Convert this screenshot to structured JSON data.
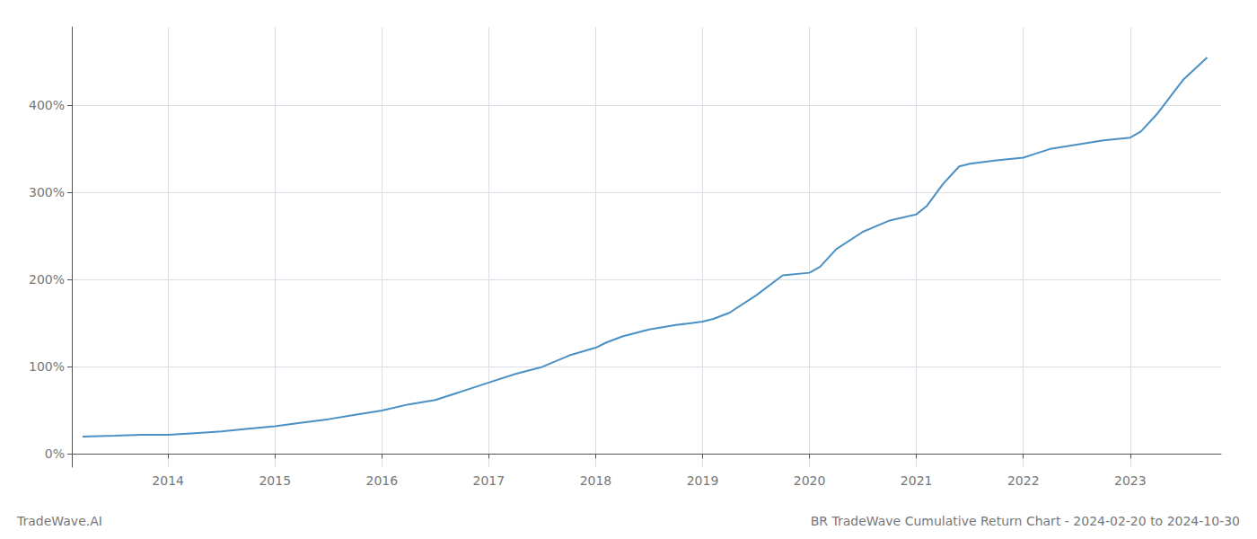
{
  "chart_data": {
    "type": "line",
    "title": "BR TradeWave Cumulative Return Chart - 2024-02-20 to 2024-10-30",
    "annotations": [
      "TradeWave.AI"
    ],
    "x": [
      2013.2,
      2013.5,
      2013.75,
      2014.0,
      2014.25,
      2014.5,
      2014.75,
      2015.0,
      2015.25,
      2015.5,
      2015.75,
      2016.0,
      2016.25,
      2016.5,
      2016.75,
      2017.0,
      2017.25,
      2017.5,
      2017.75,
      2018.0,
      2018.1,
      2018.25,
      2018.5,
      2018.75,
      2019.0,
      2019.1,
      2019.25,
      2019.5,
      2019.75,
      2020.0,
      2020.1,
      2020.25,
      2020.5,
      2020.75,
      2021.0,
      2021.1,
      2021.25,
      2021.4,
      2021.5,
      2021.75,
      2022.0,
      2022.1,
      2022.25,
      2022.5,
      2022.75,
      2023.0,
      2023.1,
      2023.25,
      2023.5,
      2023.72
    ],
    "values": [
      20,
      21,
      22,
      22,
      24,
      26,
      29,
      32,
      36,
      40,
      45,
      50,
      57,
      62,
      72,
      82,
      92,
      100,
      113,
      122,
      128,
      135,
      143,
      148,
      152,
      155,
      162,
      182,
      205,
      208,
      215,
      235,
      255,
      268,
      275,
      285,
      310,
      330,
      333,
      337,
      340,
      344,
      350,
      355,
      360,
      363,
      370,
      390,
      430,
      455
    ],
    "color": "#4a90c4",
    "xlim": [
      2013.1,
      2023.85
    ],
    "xticks": [
      2014,
      2015,
      2016,
      2017,
      2018,
      2019,
      2020,
      2021,
      2022,
      2023
    ],
    "ylim": [
      -15,
      490
    ],
    "yticks": [
      {
        "value": 0,
        "label": "0%"
      },
      {
        "value": 100,
        "label": "100%"
      },
      {
        "value": 200,
        "label": "200%"
      },
      {
        "value": 300,
        "label": "300%"
      },
      {
        "value": 400,
        "label": "400%"
      }
    ],
    "grid": true
  }
}
